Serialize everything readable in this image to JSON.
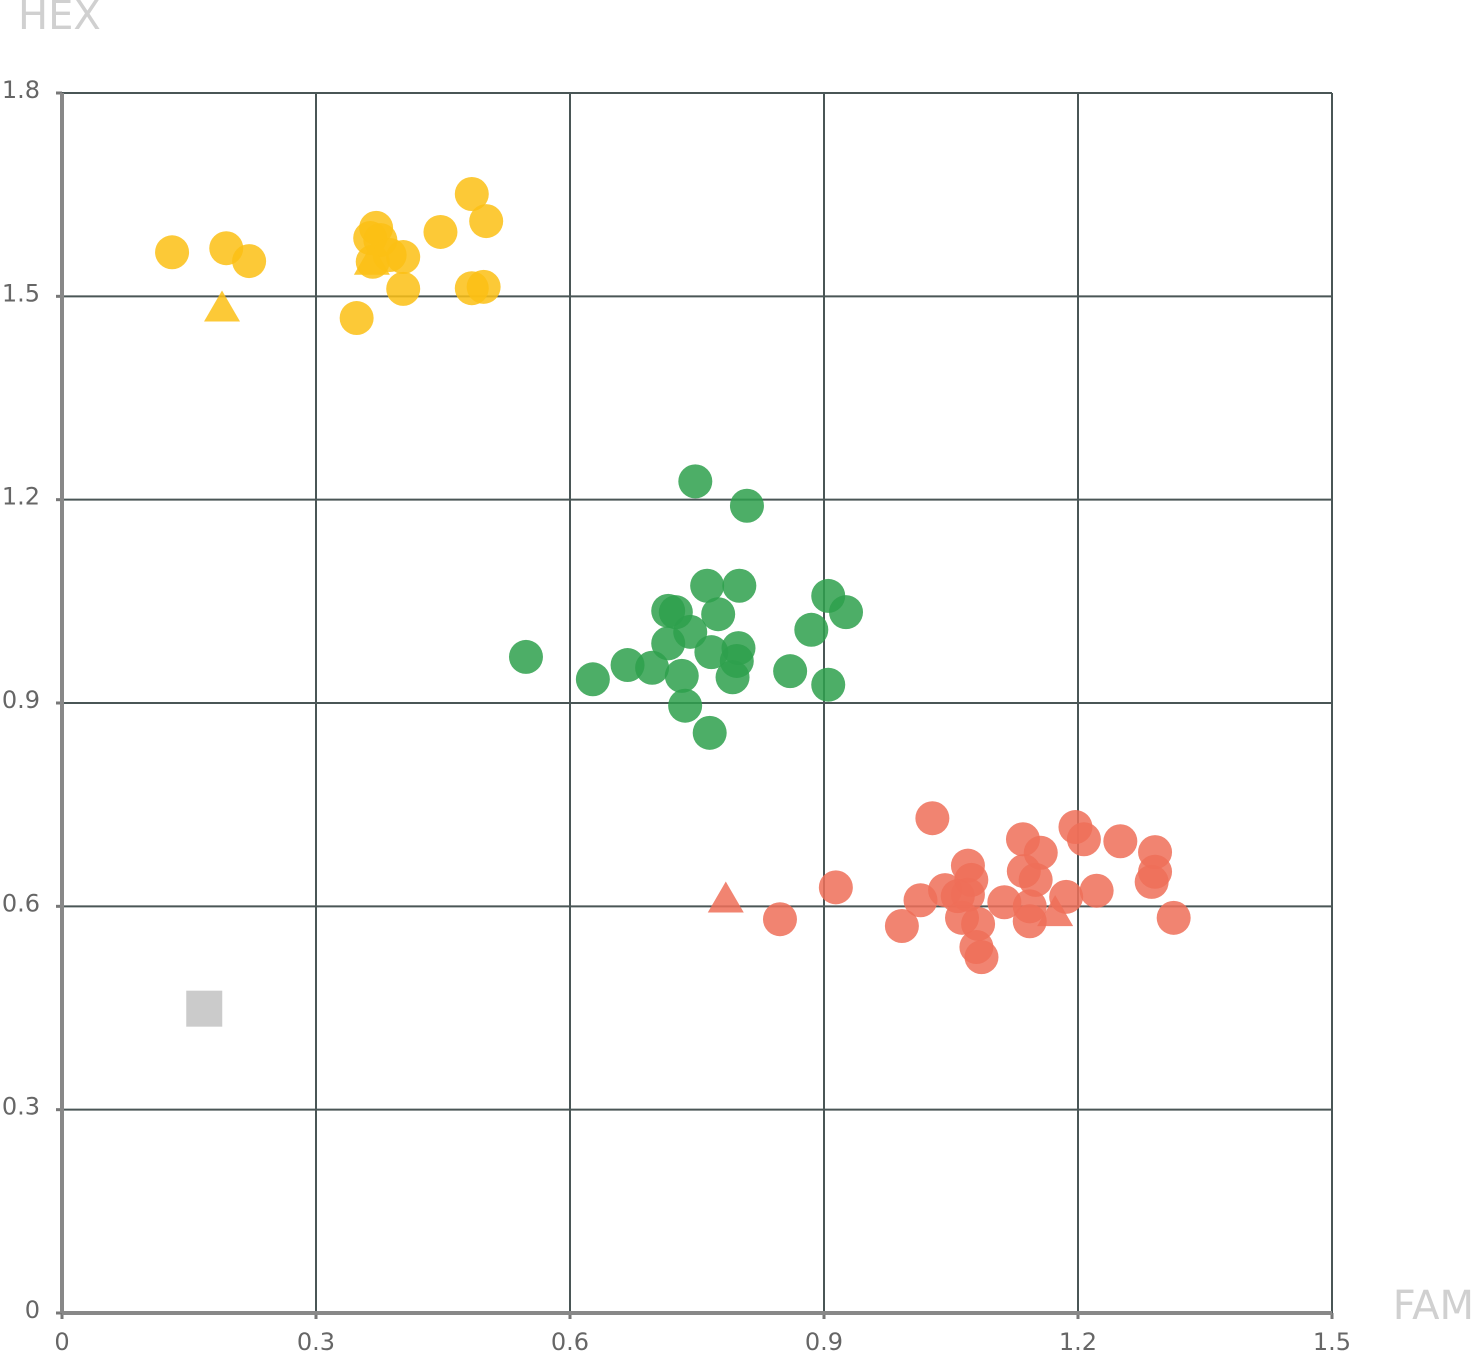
{
  "chart_data": {
    "type": "scatter",
    "xlabel": "FAM",
    "ylabel": "HEX",
    "xlim": [
      0,
      1.5
    ],
    "ylim": [
      0,
      1.8
    ],
    "xticks": [
      0,
      0.3,
      0.6,
      0.9,
      1.2,
      1.5
    ],
    "yticks": [
      0,
      0.3,
      0.6,
      0.9,
      1.2,
      1.5,
      1.8
    ],
    "grid": true,
    "series": [
      {
        "color": "#fbbf14",
        "marker": "circle",
        "x": [
          0.13,
          0.194,
          0.221,
          0.371,
          0.364,
          0.376,
          0.367,
          0.387,
          0.403,
          0.447,
          0.484,
          0.501,
          0.403,
          0.484,
          0.498,
          0.348
        ],
        "y": [
          1.565,
          1.571,
          1.552,
          1.601,
          1.586,
          1.583,
          1.551,
          1.561,
          1.558,
          1.595,
          1.651,
          1.611,
          1.511,
          1.512,
          1.514,
          1.468
        ]
      },
      {
        "color": "#fbbf14",
        "marker": "triangle",
        "x": [
          0.189,
          0.366
        ],
        "y": [
          1.482,
          1.551
        ]
      },
      {
        "color": "#2ea04c",
        "marker": "circle",
        "x": [
          0.748,
          0.809,
          0.762,
          0.8,
          0.775,
          0.716,
          0.725,
          0.742,
          0.716,
          0.767,
          0.799,
          0.797,
          0.668,
          0.697,
          0.732,
          0.627,
          0.548,
          0.792,
          0.86,
          0.885,
          0.905,
          0.926,
          0.905,
          0.736,
          0.765
        ],
        "y": [
          1.227,
          1.191,
          1.073,
          1.073,
          1.031,
          1.036,
          1.034,
          1.005,
          0.988,
          0.975,
          0.981,
          0.962,
          0.956,
          0.952,
          0.94,
          0.935,
          0.968,
          0.938,
          0.947,
          1.008,
          1.058,
          1.034,
          0.927,
          0.896,
          0.856
        ]
      },
      {
        "color": "#ee6e58",
        "marker": "circle",
        "x": [
          1.028,
          1.135,
          1.197,
          1.207,
          1.25,
          1.291,
          1.291,
          1.287,
          1.156,
          1.136,
          1.15,
          1.07,
          1.074,
          1.222,
          1.186,
          1.143,
          1.143,
          0.914,
          0.848,
          0.992,
          1.014,
          1.043,
          1.058,
          1.07,
          1.063,
          1.082,
          1.113,
          1.08,
          1.086,
          1.313
        ],
        "y": [
          0.73,
          0.699,
          0.717,
          0.699,
          0.696,
          0.68,
          0.651,
          0.636,
          0.679,
          0.652,
          0.639,
          0.66,
          0.639,
          0.623,
          0.614,
          0.6,
          0.578,
          0.628,
          0.581,
          0.571,
          0.609,
          0.624,
          0.615,
          0.617,
          0.583,
          0.574,
          0.606,
          0.54,
          0.525,
          0.583
        ]
      },
      {
        "color": "#ee6e58",
        "marker": "triangle",
        "x": [
          0.784,
          1.173
        ],
        "y": [
          0.61,
          0.59
        ]
      },
      {
        "color": "#c2c2c2",
        "marker": "square",
        "x": [
          0.168
        ],
        "y": [
          0.449
        ]
      }
    ]
  }
}
